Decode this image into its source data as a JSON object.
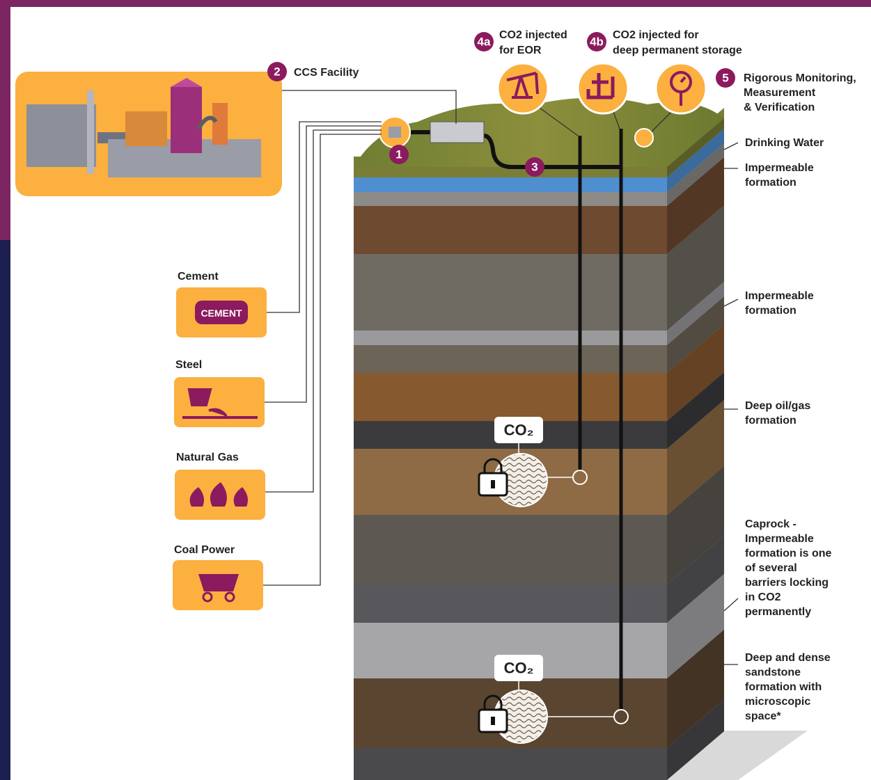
{
  "facility": {
    "number": "2",
    "label": "CCS Facility"
  },
  "capture": {
    "number": "1"
  },
  "pipeline": {
    "number": "3"
  },
  "injection": [
    {
      "number": "4a",
      "label": [
        "CO2 injected",
        "for EOR"
      ]
    },
    {
      "number": "4b",
      "label": [
        "CO2 injected for",
        "deep permanent storage"
      ]
    }
  ],
  "monitoring": {
    "number": "5",
    "label": [
      "Rigorous Monitoring,",
      "Measurement",
      "& Verification"
    ]
  },
  "sources": [
    {
      "label": "Cement",
      "icon_text": "CEMENT"
    },
    {
      "label": "Steel"
    },
    {
      "label": "Natural Gas"
    },
    {
      "label": "Coal Power"
    }
  ],
  "layers": [
    {
      "label": [
        "Drinking Water"
      ]
    },
    {
      "label": [
        "Impermeable",
        "formation"
      ]
    },
    {
      "label": [
        "Impermeable",
        "formation"
      ]
    },
    {
      "label": [
        "Deep oil/gas",
        "formation"
      ]
    },
    {
      "label": [
        "Caprock -",
        "Impermeable",
        "formation is one",
        "of several",
        "barriers locking",
        "in CO2",
        "permanently"
      ]
    },
    {
      "label": [
        "Deep and dense",
        "sandstone",
        "formation with",
        "microscopic",
        "space*"
      ]
    }
  ],
  "storage": [
    {
      "label": "CO₂"
    },
    {
      "label": "CO₂"
    }
  ]
}
